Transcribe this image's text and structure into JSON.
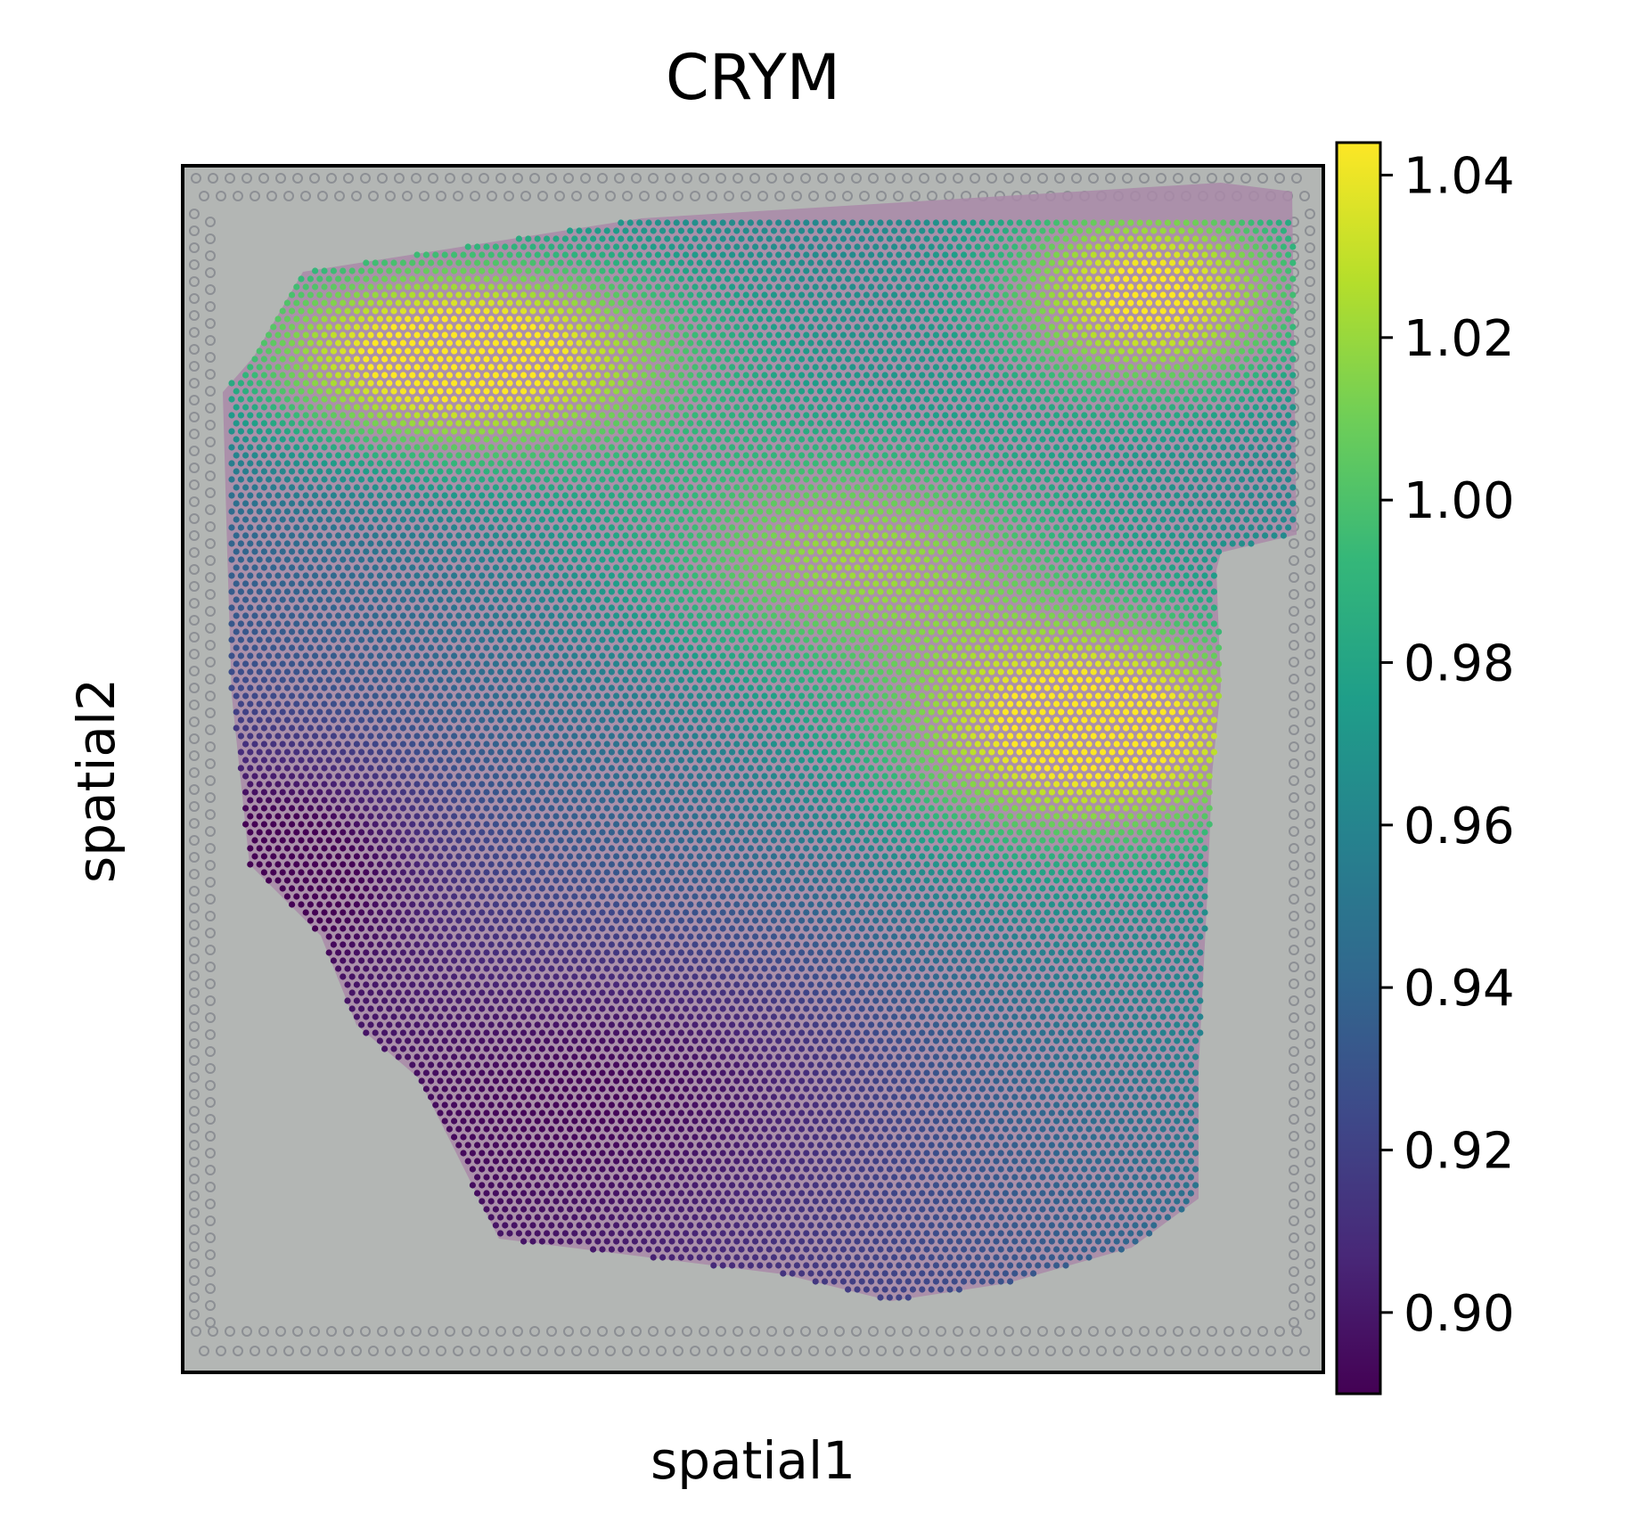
{
  "chart_data": {
    "type": "scatter",
    "title": "CRYM",
    "xlabel": "spatial1",
    "ylabel": "spatial2",
    "colorbar": {
      "colormap": "viridis",
      "range": [
        0.89,
        1.044
      ],
      "ticks": [
        0.9,
        0.92,
        0.94,
        0.96,
        0.98,
        1.0,
        1.02,
        1.04
      ],
      "tick_labels": [
        "0.90",
        "0.92",
        "0.94",
        "0.96",
        "0.98",
        "1.00",
        "1.02",
        "1.04"
      ]
    },
    "background": "H&E tissue section with grid of fiducial spots",
    "value_range_observed": [
      0.89,
      1.044
    ],
    "high_regions": [
      "upper-left band",
      "upper-right corner",
      "right-middle region"
    ],
    "low_regions": [
      "left and lower tissue"
    ]
  },
  "colors": {
    "viridis": [
      "#440154",
      "#482878",
      "#3e4989",
      "#31688e",
      "#26828e",
      "#1f9e89",
      "#35b779",
      "#6ece58",
      "#b5de2b",
      "#fde725"
    ],
    "slide_background": "#b3b6b4",
    "tissue": "#a98aa8"
  }
}
